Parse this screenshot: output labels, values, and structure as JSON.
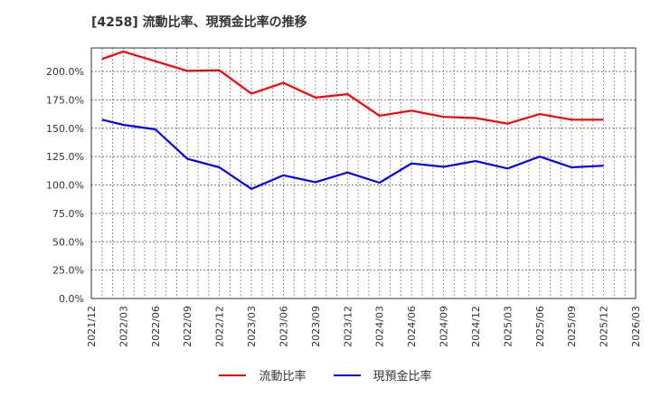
{
  "title": "[4258]  流動比率、現預金比率の推移",
  "legend": {
    "items": [
      {
        "label": "流動比率",
        "color": "#ff0000"
      },
      {
        "label": "現預金比率",
        "color": "#0000ff"
      }
    ]
  },
  "chart_data": {
    "type": "line",
    "title": "[4258]  流動比率、現預金比率の推移",
    "xlabel": "",
    "ylabel": "",
    "ylim": [
      0,
      220
    ],
    "yticks": [
      "0.0%",
      "25.0%",
      "50.0%",
      "75.0%",
      "100.0%",
      "125.0%",
      "150.0%",
      "175.0%",
      "200.0%"
    ],
    "xticks": [
      "2021/12",
      "2022/03",
      "2022/06",
      "2022/09",
      "2022/12",
      "2023/03",
      "2023/06",
      "2023/09",
      "2023/12",
      "2024/03",
      "2024/06",
      "2024/09",
      "2024/12",
      "2025/03",
      "2025/06",
      "2025/09",
      "2025/12",
      "2026/03"
    ],
    "grid": true,
    "legend_position": "bottom",
    "x": [
      "2022/01",
      "2022/03",
      "2022/06",
      "2022/09",
      "2022/12",
      "2023/03",
      "2023/06",
      "2023/09",
      "2023/12",
      "2024/03",
      "2024/06",
      "2024/09",
      "2024/12",
      "2025/03",
      "2025/06",
      "2025/09",
      "2025/12"
    ],
    "series": [
      {
        "name": "流動比率",
        "color": "#ff0000",
        "values": [
          211.0,
          217.5,
          209.0,
          200.5,
          201.0,
          180.5,
          190.0,
          177.0,
          180.0,
          161.0,
          165.5,
          160.0,
          159.0,
          154.0,
          162.5,
          157.5,
          157.5
        ]
      },
      {
        "name": "現預金比率",
        "color": "#0000ff",
        "values": [
          157.5,
          153.0,
          149.0,
          123.0,
          115.5,
          96.5,
          108.5,
          102.5,
          111.0,
          102.0,
          119.0,
          116.0,
          121.0,
          114.5,
          125.0,
          115.5,
          117.0
        ]
      }
    ]
  }
}
